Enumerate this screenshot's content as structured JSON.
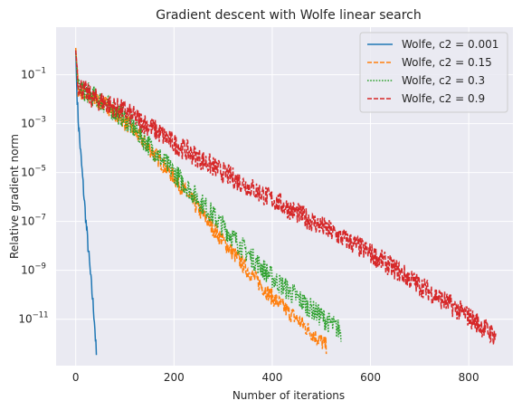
{
  "chart_data": {
    "type": "line",
    "title": "Gradient descent with Wolfe linear search",
    "xlabel": "Number of iterations",
    "ylabel": "Relative gradient norm",
    "xlim": [
      -40,
      890
    ],
    "ylim_log10": [
      -12.9,
      0.95
    ],
    "yscale": "log",
    "grid": true,
    "legend_position": "top-right",
    "x_ticks": [
      {
        "value": 0,
        "label": "0"
      },
      {
        "value": 200,
        "label": "200"
      },
      {
        "value": 400,
        "label": "400"
      },
      {
        "value": 600,
        "label": "600"
      },
      {
        "value": 800,
        "label": "800"
      }
    ],
    "y_ticks": [
      {
        "exp": -1,
        "base": "10",
        "sup": "−1"
      },
      {
        "exp": -3,
        "base": "10",
        "sup": "−3"
      },
      {
        "exp": -5,
        "base": "10",
        "sup": "−5"
      },
      {
        "exp": -7,
        "base": "10",
        "sup": "−7"
      },
      {
        "exp": -9,
        "base": "10",
        "sup": "−9"
      },
      {
        "exp": -11,
        "base": "10",
        "sup": "−11"
      }
    ],
    "series": [
      {
        "name": "Wolfe, c2 = 0.001",
        "color": "#1f77b4",
        "dash": "solid",
        "points": [
          [
            0,
            0.0
          ],
          [
            2,
            -1.5
          ],
          [
            5,
            -2.8
          ],
          [
            10,
            -4.2
          ],
          [
            20,
            -6.8
          ],
          [
            30,
            -9.2
          ],
          [
            38,
            -11.0
          ],
          [
            42,
            -12.5
          ]
        ],
        "noise": 0.3
      },
      {
        "name": "Wolfe, c2 = 0.15",
        "color": "#ff7f0e",
        "dash": "dashed",
        "points": [
          [
            0,
            0.1
          ],
          [
            5,
            -1.6
          ],
          [
            30,
            -1.95
          ],
          [
            60,
            -2.2
          ],
          [
            100,
            -2.9
          ],
          [
            150,
            -4.0
          ],
          [
            200,
            -5.2
          ],
          [
            250,
            -6.5
          ],
          [
            300,
            -7.8
          ],
          [
            350,
            -9.0
          ],
          [
            400,
            -10.1
          ],
          [
            450,
            -11.0
          ],
          [
            510,
            -12.1
          ]
        ],
        "noise": 0.35
      },
      {
        "name": "Wolfe, c2 = 0.3",
        "color": "#2ca02c",
        "dash": "dotted",
        "points": [
          [
            0,
            0.0
          ],
          [
            5,
            -1.5
          ],
          [
            30,
            -1.8
          ],
          [
            60,
            -2.2
          ],
          [
            100,
            -2.8
          ],
          [
            150,
            -3.9
          ],
          [
            200,
            -5.0
          ],
          [
            250,
            -6.1
          ],
          [
            300,
            -7.2
          ],
          [
            350,
            -8.3
          ],
          [
            400,
            -9.3
          ],
          [
            450,
            -10.1
          ],
          [
            500,
            -10.9
          ],
          [
            540,
            -11.5
          ]
        ],
        "noise": 0.45
      },
      {
        "name": "Wolfe, c2 = 0.9",
        "color": "#d62728",
        "dash": "dashed",
        "points": [
          [
            0,
            0.0
          ],
          [
            5,
            -1.4
          ],
          [
            30,
            -1.9
          ],
          [
            100,
            -2.5
          ],
          [
            150,
            -3.1
          ],
          [
            200,
            -3.8
          ],
          [
            300,
            -5.0
          ],
          [
            400,
            -6.1
          ],
          [
            500,
            -7.2
          ],
          [
            600,
            -8.3
          ],
          [
            700,
            -9.6
          ],
          [
            800,
            -10.9
          ],
          [
            855,
            -11.7
          ]
        ],
        "noise": 0.45
      }
    ]
  }
}
